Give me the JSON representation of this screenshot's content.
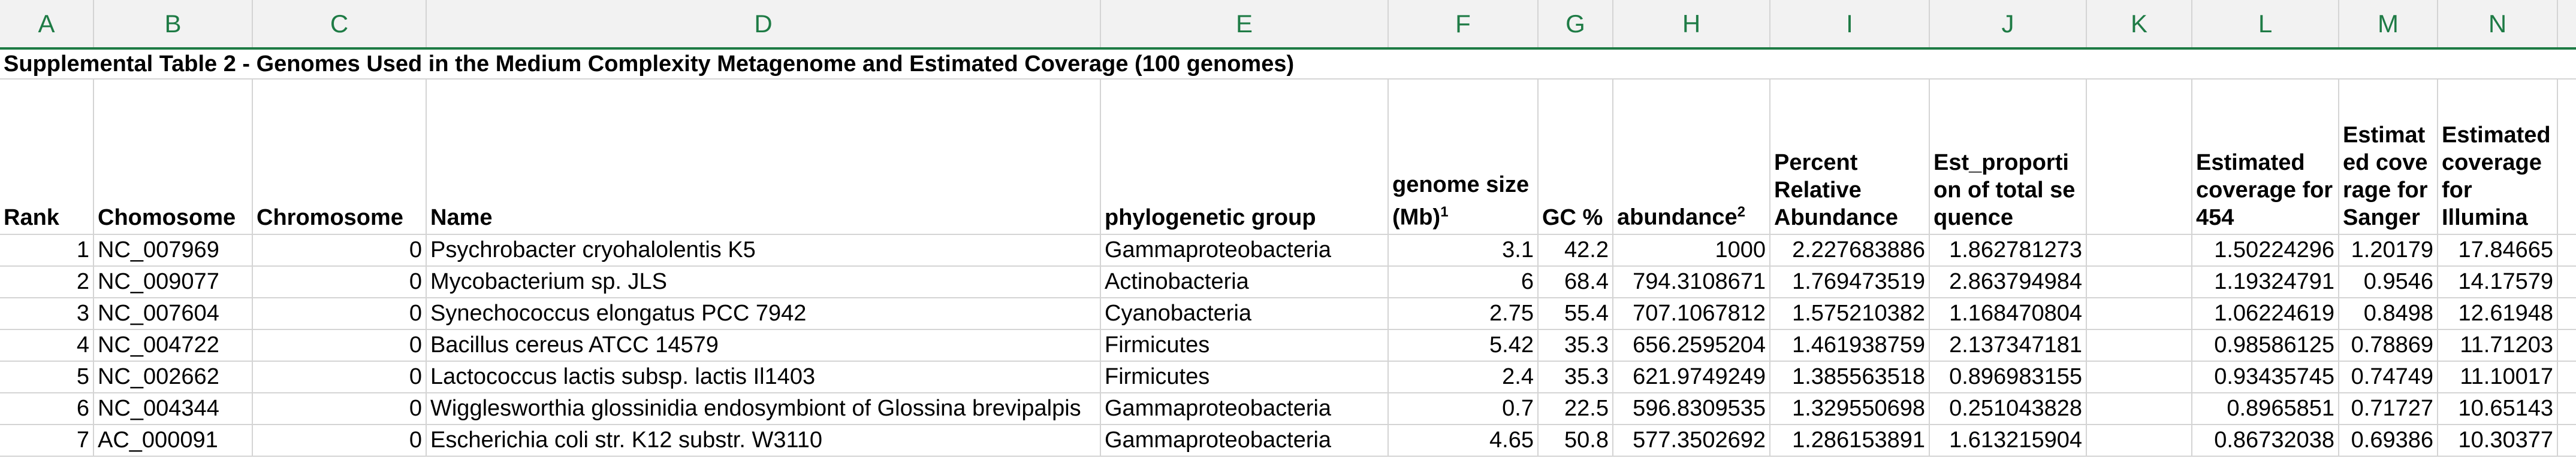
{
  "columns": [
    "A",
    "B",
    "C",
    "D",
    "E",
    "F",
    "G",
    "H",
    "I",
    "J",
    "K",
    "L",
    "M",
    "N"
  ],
  "title": "Supplemental Table 2 - Genomes Used in the Medium Complexity Metagenome and Estimated Coverage (100 genomes)",
  "headers": {
    "rank": "Rank",
    "chomosome": "Chomosome",
    "chromosome": "Chromosome",
    "name": "Name",
    "group": "phylogenetic group",
    "genome_size": "genome size (Mb)",
    "genome_size_sup": "1",
    "gc": "GC %",
    "abundance": "abundance",
    "abundance_sup": "2",
    "percent": "Percent Relative Abundance",
    "est_prop": "Est_proportion of total sequence",
    "k": "",
    "cov454": "Estimated coverage for 454",
    "covsanger": "Estimated coverage for Sanger",
    "covillumina": "Estimated coverage for Illumina"
  },
  "rows": [
    {
      "rank": "1",
      "acc": "NC_007969",
      "chr": "0",
      "name": "Psychrobacter cryohalolentis K5",
      "group": "Gammaproteobacteria",
      "size": "3.1",
      "gc": "42.2",
      "abund": "1000",
      "pct": "2.227683886",
      "prop": "1.862781273",
      "c454": "1.50224296",
      "csanger": "1.20179",
      "cill": "17.84665"
    },
    {
      "rank": "2",
      "acc": "NC_009077",
      "chr": "0",
      "name": "Mycobacterium sp. JLS",
      "group": "Actinobacteria",
      "size": "6",
      "gc": "68.4",
      "abund": "794.3108671",
      "pct": "1.769473519",
      "prop": "2.863794984",
      "c454": "1.19324791",
      "csanger": "0.9546",
      "cill": "14.17579"
    },
    {
      "rank": "3",
      "acc": "NC_007604",
      "chr": "0",
      "name": "Synechococcus elongatus PCC 7942",
      "group": "Cyanobacteria",
      "size": "2.75",
      "gc": "55.4",
      "abund": "707.1067812",
      "pct": "1.575210382",
      "prop": "1.168470804",
      "c454": "1.06224619",
      "csanger": "0.8498",
      "cill": "12.61948"
    },
    {
      "rank": "4",
      "acc": "NC_004722",
      "chr": "0",
      "name": "Bacillus cereus ATCC 14579",
      "group": "Firmicutes",
      "size": "5.42",
      "gc": "35.3",
      "abund": "656.2595204",
      "pct": "1.461938759",
      "prop": "2.137347181",
      "c454": "0.98586125",
      "csanger": "0.78869",
      "cill": "11.71203"
    },
    {
      "rank": "5",
      "acc": "NC_002662",
      "chr": "0",
      "name": "Lactococcus lactis subsp. lactis Il1403",
      "group": "Firmicutes",
      "size": "2.4",
      "gc": "35.3",
      "abund": "621.9749249",
      "pct": "1.385563518",
      "prop": "0.896983155",
      "c454": "0.93435745",
      "csanger": "0.74749",
      "cill": "11.10017"
    },
    {
      "rank": "6",
      "acc": "NC_004344",
      "chr": "0",
      "name": "Wigglesworthia glossinidia endosymbiont of Glossina brevipalpis",
      "group": "Gammaproteobacteria",
      "size": "0.7",
      "gc": "22.5",
      "abund": "596.8309535",
      "pct": "1.329550698",
      "prop": "0.251043828",
      "c454": "0.8965851",
      "csanger": "0.71727",
      "cill": "10.65143"
    },
    {
      "rank": "7",
      "acc": "AC_000091",
      "chr": "0",
      "name": "Escherichia coli str. K12 substr. W3110",
      "group": "Gammaproteobacteria",
      "size": "4.65",
      "gc": "50.8",
      "abund": "577.3502692",
      "pct": "1.286153891",
      "prop": "1.613215904",
      "c454": "0.86732038",
      "csanger": "0.69386",
      "cill": "10.30377"
    }
  ],
  "colors": {
    "header_bg": "#f2f2f2",
    "header_text": "#1e7b45",
    "grid": "#d4d4d4"
  }
}
